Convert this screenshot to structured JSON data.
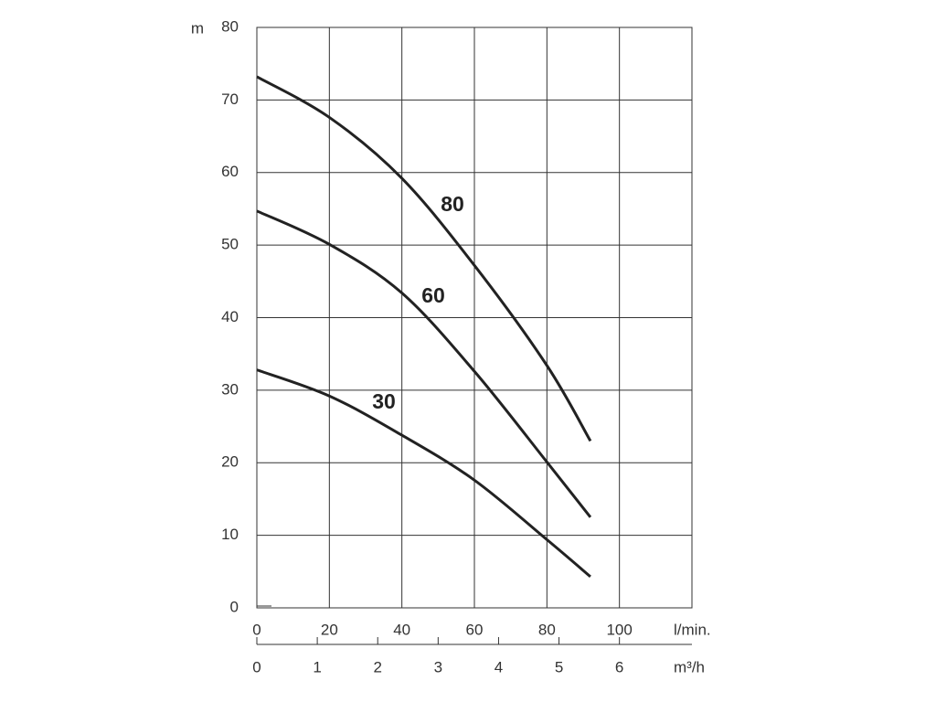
{
  "chart_data": {
    "type": "line",
    "y_label": "m",
    "x_label": "l/min.",
    "x2_label": "m³/h",
    "x": [
      0,
      20,
      40,
      60,
      80,
      92
    ],
    "series": [
      {
        "name": "80",
        "color": "#222222",
        "values": [
          73.2,
          67.6,
          59.2,
          47.2,
          33.4,
          23
        ]
      },
      {
        "name": "60",
        "color": "#222222",
        "values": [
          54.7,
          50.1,
          43.4,
          32.6,
          20.1,
          12.5
        ]
      },
      {
        "name": "30",
        "color": "#222222",
        "values": [
          32.8,
          29.2,
          23.8,
          17.6,
          9.4,
          4.3
        ]
      }
    ],
    "xlim": [
      0,
      120
    ],
    "xticks": [
      0,
      20,
      40,
      60,
      80,
      100
    ],
    "x2lim": [
      0,
      7.2
    ],
    "x2ticks": [
      0,
      1,
      2,
      3,
      4,
      5,
      6
    ],
    "ylim": [
      0,
      80
    ],
    "yticks": [
      0,
      10,
      20,
      30,
      40,
      50,
      60,
      70,
      80
    ],
    "grid": true
  }
}
